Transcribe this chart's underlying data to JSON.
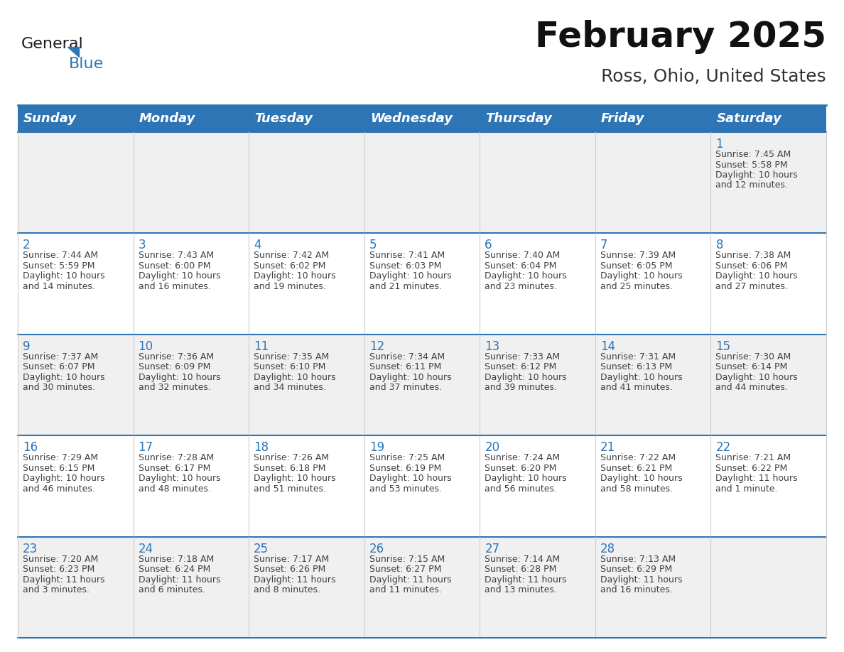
{
  "title": "February 2025",
  "subtitle": "Ross, Ohio, United States",
  "header_color": "#2E75B6",
  "header_text_color": "#FFFFFF",
  "cell_border_color": "#2E75B6",
  "row_border_color": "#2E75B6",
  "col_border_color": "#cccccc",
  "day_number_color": "#2E75B6",
  "text_color": "#404040",
  "background_color": "#FFFFFF",
  "alt_row_color": "#f0f0f0",
  "days_of_week": [
    "Sunday",
    "Monday",
    "Tuesday",
    "Wednesday",
    "Thursday",
    "Friday",
    "Saturday"
  ],
  "calendar_data": [
    [
      null,
      null,
      null,
      null,
      null,
      null,
      {
        "day": "1",
        "sunrise": "7:45 AM",
        "sunset": "5:58 PM",
        "daylight1": "10 hours",
        "daylight2": "and 12 minutes."
      }
    ],
    [
      {
        "day": "2",
        "sunrise": "7:44 AM",
        "sunset": "5:59 PM",
        "daylight1": "10 hours",
        "daylight2": "and 14 minutes."
      },
      {
        "day": "3",
        "sunrise": "7:43 AM",
        "sunset": "6:00 PM",
        "daylight1": "10 hours",
        "daylight2": "and 16 minutes."
      },
      {
        "day": "4",
        "sunrise": "7:42 AM",
        "sunset": "6:02 PM",
        "daylight1": "10 hours",
        "daylight2": "and 19 minutes."
      },
      {
        "day": "5",
        "sunrise": "7:41 AM",
        "sunset": "6:03 PM",
        "daylight1": "10 hours",
        "daylight2": "and 21 minutes."
      },
      {
        "day": "6",
        "sunrise": "7:40 AM",
        "sunset": "6:04 PM",
        "daylight1": "10 hours",
        "daylight2": "and 23 minutes."
      },
      {
        "day": "7",
        "sunrise": "7:39 AM",
        "sunset": "6:05 PM",
        "daylight1": "10 hours",
        "daylight2": "and 25 minutes."
      },
      {
        "day": "8",
        "sunrise": "7:38 AM",
        "sunset": "6:06 PM",
        "daylight1": "10 hours",
        "daylight2": "and 27 minutes."
      }
    ],
    [
      {
        "day": "9",
        "sunrise": "7:37 AM",
        "sunset": "6:07 PM",
        "daylight1": "10 hours",
        "daylight2": "and 30 minutes."
      },
      {
        "day": "10",
        "sunrise": "7:36 AM",
        "sunset": "6:09 PM",
        "daylight1": "10 hours",
        "daylight2": "and 32 minutes."
      },
      {
        "day": "11",
        "sunrise": "7:35 AM",
        "sunset": "6:10 PM",
        "daylight1": "10 hours",
        "daylight2": "and 34 minutes."
      },
      {
        "day": "12",
        "sunrise": "7:34 AM",
        "sunset": "6:11 PM",
        "daylight1": "10 hours",
        "daylight2": "and 37 minutes."
      },
      {
        "day": "13",
        "sunrise": "7:33 AM",
        "sunset": "6:12 PM",
        "daylight1": "10 hours",
        "daylight2": "and 39 minutes."
      },
      {
        "day": "14",
        "sunrise": "7:31 AM",
        "sunset": "6:13 PM",
        "daylight1": "10 hours",
        "daylight2": "and 41 minutes."
      },
      {
        "day": "15",
        "sunrise": "7:30 AM",
        "sunset": "6:14 PM",
        "daylight1": "10 hours",
        "daylight2": "and 44 minutes."
      }
    ],
    [
      {
        "day": "16",
        "sunrise": "7:29 AM",
        "sunset": "6:15 PM",
        "daylight1": "10 hours",
        "daylight2": "and 46 minutes."
      },
      {
        "day": "17",
        "sunrise": "7:28 AM",
        "sunset": "6:17 PM",
        "daylight1": "10 hours",
        "daylight2": "and 48 minutes."
      },
      {
        "day": "18",
        "sunrise": "7:26 AM",
        "sunset": "6:18 PM",
        "daylight1": "10 hours",
        "daylight2": "and 51 minutes."
      },
      {
        "day": "19",
        "sunrise": "7:25 AM",
        "sunset": "6:19 PM",
        "daylight1": "10 hours",
        "daylight2": "and 53 minutes."
      },
      {
        "day": "20",
        "sunrise": "7:24 AM",
        "sunset": "6:20 PM",
        "daylight1": "10 hours",
        "daylight2": "and 56 minutes."
      },
      {
        "day": "21",
        "sunrise": "7:22 AM",
        "sunset": "6:21 PM",
        "daylight1": "10 hours",
        "daylight2": "and 58 minutes."
      },
      {
        "day": "22",
        "sunrise": "7:21 AM",
        "sunset": "6:22 PM",
        "daylight1": "11 hours",
        "daylight2": "and 1 minute."
      }
    ],
    [
      {
        "day": "23",
        "sunrise": "7:20 AM",
        "sunset": "6:23 PM",
        "daylight1": "11 hours",
        "daylight2": "and 3 minutes."
      },
      {
        "day": "24",
        "sunrise": "7:18 AM",
        "sunset": "6:24 PM",
        "daylight1": "11 hours",
        "daylight2": "and 6 minutes."
      },
      {
        "day": "25",
        "sunrise": "7:17 AM",
        "sunset": "6:26 PM",
        "daylight1": "11 hours",
        "daylight2": "and 8 minutes."
      },
      {
        "day": "26",
        "sunrise": "7:15 AM",
        "sunset": "6:27 PM",
        "daylight1": "11 hours",
        "daylight2": "and 11 minutes."
      },
      {
        "day": "27",
        "sunrise": "7:14 AM",
        "sunset": "6:28 PM",
        "daylight1": "11 hours",
        "daylight2": "and 13 minutes."
      },
      {
        "day": "28",
        "sunrise": "7:13 AM",
        "sunset": "6:29 PM",
        "daylight1": "11 hours",
        "daylight2": "and 16 minutes."
      },
      null
    ]
  ],
  "logo_color_general": "#1a1a1a",
  "logo_color_blue": "#2E75B6",
  "logo_triangle_color": "#2E75B6",
  "fig_width": 11.88,
  "fig_height": 9.18,
  "title_fontsize": 36,
  "subtitle_fontsize": 18,
  "header_fontsize": 13,
  "day_num_fontsize": 12,
  "cell_text_fontsize": 9
}
